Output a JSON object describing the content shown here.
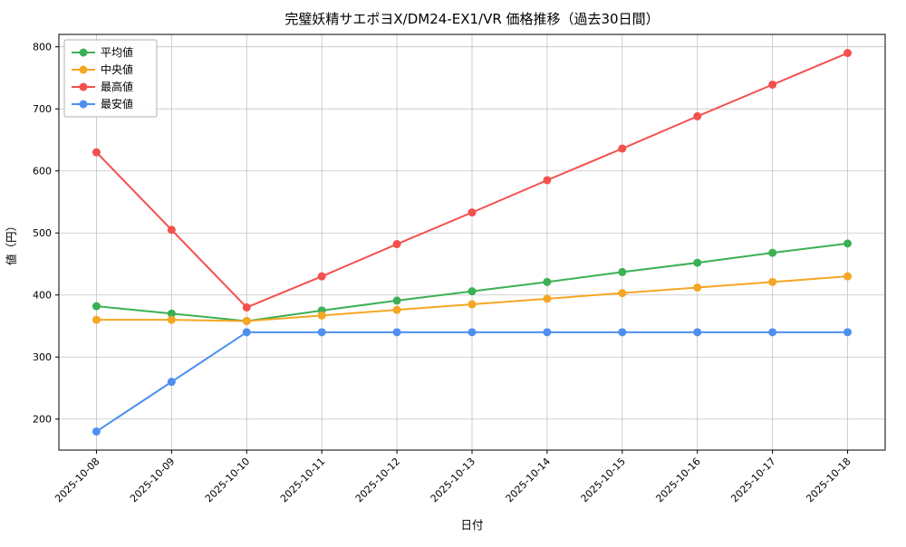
{
  "chart_data": {
    "type": "line",
    "title": "完璧妖精サエポヨX/DM24-EX1/VR 価格推移（過去30日間）",
    "xlabel": "日付",
    "ylabel": "値（円）",
    "x": [
      "2025-10-08",
      "2025-10-09",
      "2025-10-10",
      "2025-10-11",
      "2025-10-12",
      "2025-10-13",
      "2025-10-14",
      "2025-10-15",
      "2025-10-16",
      "2025-10-17",
      "2025-10-18"
    ],
    "series": [
      {
        "name": "平均値",
        "color": "#3cb054",
        "values": [
          382,
          370,
          358,
          375,
          391,
          406,
          421,
          437,
          452,
          468,
          483
        ]
      },
      {
        "name": "中央値",
        "color": "#f5a623",
        "values": [
          360,
          360,
          358,
          367,
          376,
          385,
          394,
          403,
          412,
          421,
          430
        ]
      },
      {
        "name": "最高値",
        "color": "#f4504e",
        "values": [
          630,
          505,
          380,
          430,
          482,
          533,
          585,
          636,
          688,
          739,
          790
        ]
      },
      {
        "name": "最安値",
        "color": "#4d90f0",
        "values": [
          180,
          260,
          340,
          340,
          340,
          340,
          340,
          340,
          340,
          340,
          340
        ]
      }
    ],
    "ylim": [
      150,
      820
    ],
    "yticks": [
      200,
      300,
      400,
      500,
      600,
      700,
      800
    ],
    "grid": true,
    "grid_color": "#c3c3c3",
    "legend_position": "upper-left",
    "plot_background": "#ffffff"
  }
}
